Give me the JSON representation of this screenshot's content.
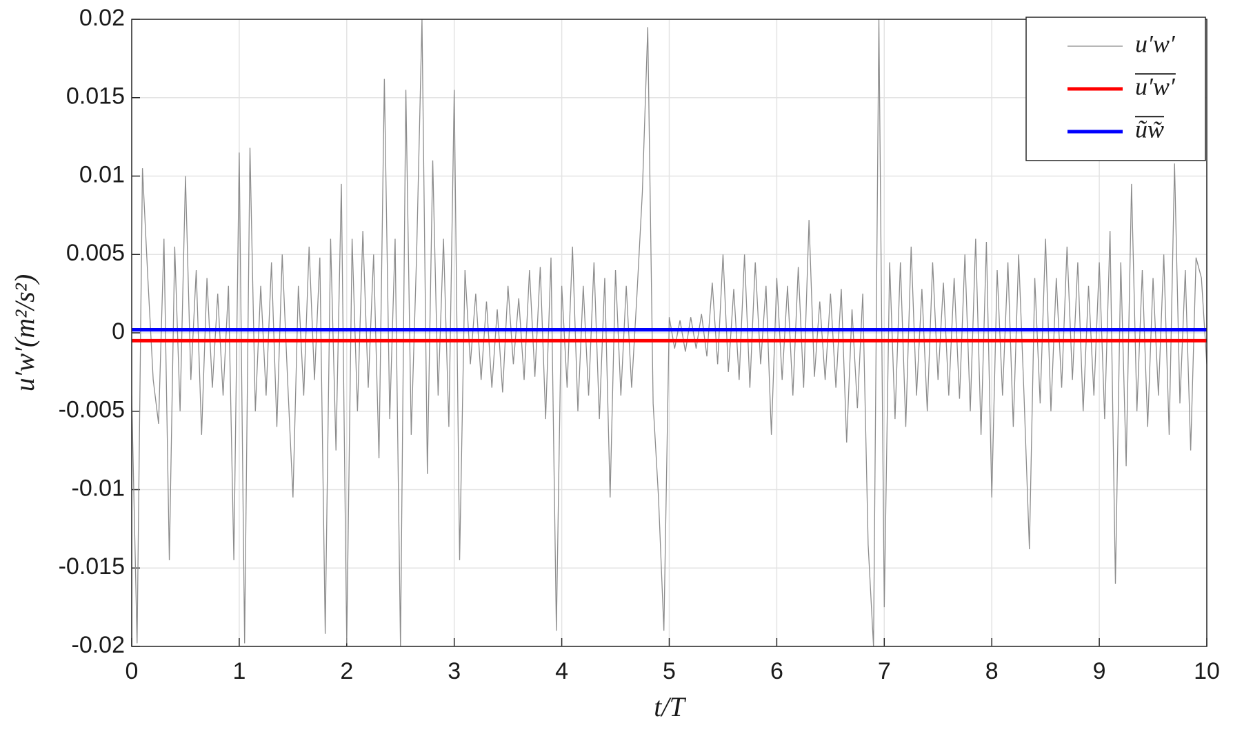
{
  "chart_data": {
    "type": "line",
    "xlabel": "t/T",
    "ylabel": "u′w′(m²/s²)",
    "xlim": [
      0,
      10
    ],
    "ylim": [
      -0.02,
      0.02
    ],
    "xticks": [
      0,
      1,
      2,
      3,
      4,
      5,
      6,
      7,
      8,
      9,
      10
    ],
    "yticks": [
      0.02,
      0.015,
      0.01,
      0.005,
      0,
      -0.005,
      -0.01,
      -0.015,
      -0.02
    ],
    "grid": true,
    "legend": "upper right",
    "series": [
      {
        "name": "u′w′",
        "color": "#8c8c8c",
        "overline": false,
        "x": [
          0,
          0.05,
          0.1,
          0.15,
          0.2,
          0.25,
          0.3,
          0.35,
          0.4,
          0.45,
          0.5,
          0.55,
          0.6,
          0.65,
          0.7,
          0.75,
          0.8,
          0.85,
          0.9,
          0.95,
          1,
          1.05,
          1.1,
          1.15,
          1.2,
          1.25,
          1.3,
          1.35,
          1.4,
          1.45,
          1.5,
          1.55,
          1.6,
          1.65,
          1.7,
          1.75,
          1.8,
          1.85,
          1.9,
          1.95,
          2,
          2.05,
          2.1,
          2.15,
          2.2,
          2.25,
          2.3,
          2.35,
          2.4,
          2.45,
          2.5,
          2.55,
          2.6,
          2.65,
          2.7,
          2.75,
          2.8,
          2.85,
          2.9,
          2.95,
          3,
          3.05,
          3.1,
          3.15,
          3.2,
          3.25,
          3.3,
          3.35,
          3.4,
          3.45,
          3.5,
          3.55,
          3.6,
          3.65,
          3.7,
          3.75,
          3.8,
          3.85,
          3.9,
          3.95,
          4,
          4.05,
          4.1,
          4.15,
          4.2,
          4.25,
          4.3,
          4.35,
          4.4,
          4.45,
          4.5,
          4.55,
          4.6,
          4.65,
          4.7,
          4.75,
          4.8,
          4.85,
          4.9,
          4.95,
          5,
          5.05,
          5.1,
          5.15,
          5.2,
          5.25,
          5.3,
          5.35,
          5.4,
          5.45,
          5.5,
          5.55,
          5.6,
          5.65,
          5.7,
          5.75,
          5.8,
          5.85,
          5.9,
          5.95,
          6,
          6.05,
          6.1,
          6.15,
          6.2,
          6.25,
          6.3,
          6.35,
          6.4,
          6.45,
          6.5,
          6.55,
          6.6,
          6.65,
          6.7,
          6.75,
          6.8,
          6.85,
          6.9,
          6.95,
          7,
          7.05,
          7.1,
          7.15,
          7.2,
          7.25,
          7.3,
          7.35,
          7.4,
          7.45,
          7.5,
          7.55,
          7.6,
          7.65,
          7.7,
          7.75,
          7.8,
          7.85,
          7.9,
          7.95,
          8,
          8.05,
          8.1,
          8.15,
          8.2,
          8.25,
          8.3,
          8.35,
          8.4,
          8.45,
          8.5,
          8.55,
          8.6,
          8.65,
          8.7,
          8.75,
          8.8,
          8.85,
          8.9,
          8.95,
          9,
          9.05,
          9.1,
          9.15,
          9.2,
          9.25,
          9.3,
          9.35,
          9.4,
          9.45,
          9.5,
          9.55,
          9.6,
          9.65,
          9.7,
          9.75,
          9.8,
          9.85,
          9.9,
          9.95,
          10
        ],
        "values": [
          -0.004,
          -0.0198,
          0.0105,
          0.0035,
          -0.003,
          -0.0058,
          0.006,
          -0.0145,
          0.0055,
          -0.005,
          0.01,
          -0.003,
          0.004,
          -0.0065,
          0.0035,
          -0.0035,
          0.0025,
          -0.004,
          0.003,
          -0.0145,
          0.0115,
          -0.0198,
          0.0118,
          -0.005,
          0.003,
          -0.004,
          0.0045,
          -0.006,
          0.005,
          -0.003,
          -0.0105,
          0.003,
          -0.004,
          0.0055,
          -0.003,
          0.0048,
          -0.0192,
          0.006,
          -0.0075,
          0.0095,
          -0.0198,
          0.006,
          -0.005,
          0.0065,
          -0.0035,
          0.005,
          -0.008,
          0.0162,
          -0.0055,
          0.006,
          -0.02,
          0.0155,
          -0.0065,
          0.005,
          0.02,
          -0.009,
          0.011,
          -0.004,
          0.006,
          -0.006,
          0.0155,
          -0.0145,
          0.004,
          -0.002,
          0.0025,
          -0.003,
          0.002,
          -0.0035,
          0.0015,
          -0.0038,
          0.003,
          -0.002,
          0.0022,
          -0.003,
          0.004,
          -0.0028,
          0.0042,
          -0.0055,
          0.0048,
          -0.019,
          0.003,
          -0.0035,
          0.0055,
          -0.005,
          0.003,
          -0.004,
          0.0045,
          -0.0055,
          0.0035,
          -0.0105,
          0.004,
          -0.004,
          0.003,
          -0.0035,
          0.0025,
          0.009,
          0.0195,
          -0.0045,
          -0.0105,
          -0.019,
          0.001,
          -0.001,
          0.0008,
          -0.0012,
          0.001,
          -0.001,
          0.0012,
          -0.0015,
          0.0032,
          -0.002,
          0.005,
          -0.0025,
          0.0028,
          -0.003,
          0.005,
          -0.0035,
          0.0045,
          -0.002,
          0.003,
          -0.0065,
          0.0035,
          -0.003,
          0.003,
          -0.004,
          0.0042,
          -0.0035,
          0.0072,
          -0.0028,
          0.002,
          -0.003,
          0.0025,
          -0.0035,
          0.0028,
          -0.007,
          0.0015,
          -0.0048,
          0.0025,
          -0.0135,
          -0.02,
          0.02,
          -0.0175,
          0.0045,
          -0.0055,
          0.0045,
          -0.006,
          0.0055,
          -0.004,
          0.0028,
          -0.005,
          0.0045,
          -0.003,
          0.0032,
          -0.004,
          0.0035,
          -0.0042,
          0.005,
          -0.005,
          0.006,
          -0.0065,
          0.0058,
          -0.0105,
          0.004,
          -0.004,
          0.0045,
          -0.006,
          0.005,
          -0.004,
          -0.0138,
          0.0035,
          -0.0045,
          0.006,
          -0.005,
          0.0035,
          -0.0035,
          0.0055,
          -0.003,
          0.0045,
          -0.005,
          0.003,
          -0.004,
          0.0045,
          -0.0055,
          0.0065,
          -0.016,
          0.0045,
          -0.0085,
          0.0095,
          -0.005,
          0.004,
          -0.006,
          0.0035,
          -0.004,
          0.005,
          -0.0065,
          0.0108,
          -0.0045,
          0.004,
          -0.0075,
          0.0048,
          0.0035,
          -0.002
        ]
      },
      {
        "name": "u′w′",
        "color": "#ff0000",
        "overline": true,
        "x": [
          0,
          10
        ],
        "values": [
          -0.0005,
          -0.0005
        ]
      },
      {
        "name": "ũw̃",
        "color": "#0000ff",
        "overline": true,
        "x": [
          0,
          10
        ],
        "values": [
          0.0002,
          0.0002
        ]
      }
    ]
  }
}
